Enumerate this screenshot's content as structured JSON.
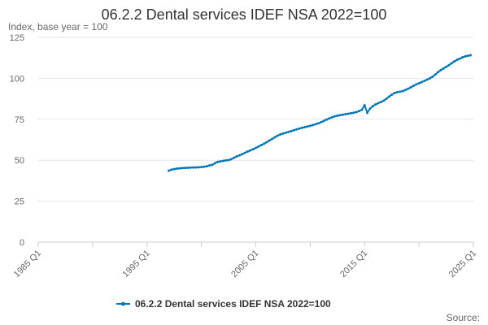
{
  "chart_data": {
    "type": "line",
    "title": "06.2.2 Dental services IDEF NSA 2022=100",
    "ylabel": "Index, base year = 100",
    "xlabel": "",
    "ylim": [
      0,
      125
    ],
    "yticks": [
      0,
      25,
      50,
      75,
      100,
      125
    ],
    "xlim": [
      "1985 Q1",
      "2025 Q1"
    ],
    "xticks": [
      "1985 Q1",
      "1995 Q1",
      "2005 Q1",
      "2015 Q1",
      "2025 Q1"
    ],
    "grid": "horizontal",
    "legend_position": "bottom",
    "series": [
      {
        "name": "06.2.2 Dental services IDEF NSA 2022=100",
        "color": "#0077b6",
        "points": [
          [
            "1997 Q1",
            43.6
          ],
          [
            "1997 Q2",
            44.2
          ],
          [
            "1997 Q3",
            44.6
          ],
          [
            "1997 Q4",
            44.9
          ],
          [
            "1998 Q1",
            45.1
          ],
          [
            "1998 Q2",
            45.2
          ],
          [
            "1998 Q3",
            45.3
          ],
          [
            "1998 Q4",
            45.4
          ],
          [
            "1999 Q1",
            45.5
          ],
          [
            "1999 Q2",
            45.6
          ],
          [
            "1999 Q3",
            45.6
          ],
          [
            "1999 Q4",
            45.7
          ],
          [
            "2000 Q1",
            45.8
          ],
          [
            "2000 Q2",
            46.0
          ],
          [
            "2000 Q3",
            46.3
          ],
          [
            "2000 Q4",
            46.8
          ],
          [
            "2001 Q1",
            47.2
          ],
          [
            "2001 Q2",
            48.2
          ],
          [
            "2001 Q3",
            49.0
          ],
          [
            "2001 Q4",
            49.3
          ],
          [
            "2002 Q1",
            49.6
          ],
          [
            "2002 Q2",
            49.9
          ],
          [
            "2002 Q3",
            50.1
          ],
          [
            "2002 Q4",
            50.6
          ],
          [
            "2003 Q1",
            51.5
          ],
          [
            "2003 Q2",
            52.3
          ],
          [
            "2003 Q3",
            53.0
          ],
          [
            "2003 Q4",
            53.7
          ],
          [
            "2004 Q1",
            54.5
          ],
          [
            "2004 Q2",
            55.3
          ],
          [
            "2004 Q3",
            56.0
          ],
          [
            "2004 Q4",
            56.7
          ],
          [
            "2005 Q1",
            57.5
          ],
          [
            "2005 Q2",
            58.4
          ],
          [
            "2005 Q3",
            59.2
          ],
          [
            "2005 Q4",
            60.0
          ],
          [
            "2006 Q1",
            61.0
          ],
          [
            "2006 Q2",
            62.0
          ],
          [
            "2006 Q3",
            63.0
          ],
          [
            "2006 Q4",
            64.0
          ],
          [
            "2007 Q1",
            65.0
          ],
          [
            "2007 Q2",
            65.7
          ],
          [
            "2007 Q3",
            66.3
          ],
          [
            "2007 Q4",
            66.8
          ],
          [
            "2008 Q1",
            67.3
          ],
          [
            "2008 Q2",
            67.8
          ],
          [
            "2008 Q3",
            68.3
          ],
          [
            "2008 Q4",
            68.8
          ],
          [
            "2009 Q1",
            69.3
          ],
          [
            "2009 Q2",
            69.8
          ],
          [
            "2009 Q3",
            70.2
          ],
          [
            "2009 Q4",
            70.6
          ],
          [
            "2010 Q1",
            71.0
          ],
          [
            "2010 Q2",
            71.5
          ],
          [
            "2010 Q3",
            72.0
          ],
          [
            "2010 Q4",
            72.5
          ],
          [
            "2011 Q1",
            73.2
          ],
          [
            "2011 Q2",
            74.0
          ],
          [
            "2011 Q3",
            74.8
          ],
          [
            "2011 Q4",
            75.5
          ],
          [
            "2012 Q1",
            76.2
          ],
          [
            "2012 Q2",
            76.8
          ],
          [
            "2012 Q3",
            77.2
          ],
          [
            "2012 Q4",
            77.5
          ],
          [
            "2013 Q1",
            77.8
          ],
          [
            "2013 Q2",
            78.1
          ],
          [
            "2013 Q3",
            78.4
          ],
          [
            "2013 Q4",
            78.7
          ],
          [
            "2014 Q1",
            79.0
          ],
          [
            "2014 Q2",
            79.4
          ],
          [
            "2014 Q3",
            80.0
          ],
          [
            "2014 Q4",
            80.8
          ],
          [
            "2015 Q1",
            83.5
          ],
          [
            "2015 Q2",
            79.0
          ],
          [
            "2015 Q3",
            81.5
          ],
          [
            "2015 Q4",
            83.0
          ],
          [
            "2016 Q1",
            84.0
          ],
          [
            "2016 Q2",
            84.8
          ],
          [
            "2016 Q3",
            85.5
          ],
          [
            "2016 Q4",
            86.3
          ],
          [
            "2017 Q1",
            87.5
          ],
          [
            "2017 Q2",
            88.8
          ],
          [
            "2017 Q3",
            90.0
          ],
          [
            "2017 Q4",
            91.0
          ],
          [
            "2018 Q1",
            91.5
          ],
          [
            "2018 Q2",
            91.8
          ],
          [
            "2018 Q3",
            92.2
          ],
          [
            "2018 Q4",
            92.8
          ],
          [
            "2019 Q1",
            93.6
          ],
          [
            "2019 Q2",
            94.5
          ],
          [
            "2019 Q3",
            95.4
          ],
          [
            "2019 Q4",
            96.3
          ],
          [
            "2020 Q1",
            97.0
          ],
          [
            "2020 Q2",
            97.7
          ],
          [
            "2020 Q3",
            98.4
          ],
          [
            "2020 Q4",
            99.2
          ],
          [
            "2021 Q1",
            100.0
          ],
          [
            "2021 Q2",
            101.0
          ],
          [
            "2021 Q3",
            102.3
          ],
          [
            "2021 Q4",
            103.8
          ],
          [
            "2022 Q1",
            105.0
          ],
          [
            "2022 Q2",
            106.0
          ],
          [
            "2022 Q3",
            107.0
          ],
          [
            "2022 Q4",
            108.0
          ],
          [
            "2023 Q1",
            109.2
          ],
          [
            "2023 Q2",
            110.3
          ],
          [
            "2023 Q3",
            111.3
          ],
          [
            "2023 Q4",
            112.0
          ],
          [
            "2024 Q1",
            112.8
          ],
          [
            "2024 Q2",
            113.4
          ],
          [
            "2024 Q3",
            113.8
          ],
          [
            "2024 Q4",
            114.1
          ]
        ]
      }
    ]
  },
  "footer": {
    "source_label": "Source:"
  }
}
